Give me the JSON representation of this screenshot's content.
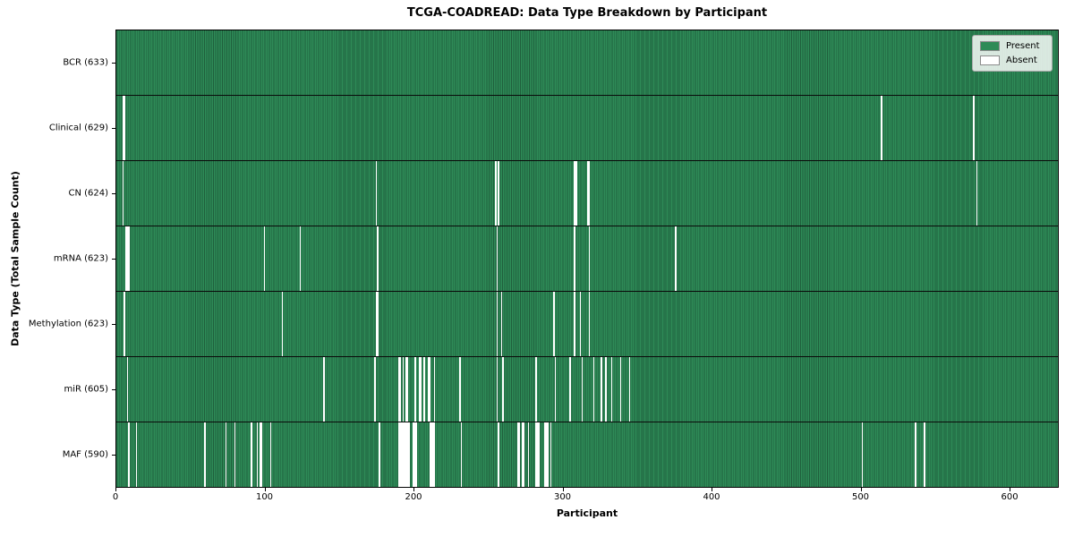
{
  "chart_data": {
    "type": "heatmap",
    "title": "TCGA-COADREAD: Data Type Breakdown by Participant",
    "xlabel": "Participant",
    "ylabel": "Data Type (Total Sample Count)",
    "legend": {
      "present_label": "Present",
      "absent_label": "Absent",
      "position": "upper right"
    },
    "colors": {
      "present": "#2e8b57",
      "present_edge": "#1f5f3c",
      "absent": "#ffffff"
    },
    "n_participants": 633,
    "x_ticks": [
      0,
      100,
      200,
      300,
      400,
      500,
      600
    ],
    "xlim": [
      0,
      633
    ],
    "grid": false,
    "rows": [
      {
        "label": "BCR (633)",
        "data_type": "BCR",
        "total": 633,
        "absent_participants": []
      },
      {
        "label": "Clinical (629)",
        "data_type": "Clinical",
        "total": 629,
        "absent_participants": [
          4,
          5,
          513,
          575
        ]
      },
      {
        "label": "CN (624)",
        "data_type": "CN",
        "total": 624,
        "absent_participants": [
          4,
          174,
          254,
          256,
          307,
          308,
          316,
          317,
          577
        ]
      },
      {
        "label": "mRNA (623)",
        "data_type": "mRNA",
        "total": 623,
        "absent_participants": [
          6,
          7,
          8,
          99,
          123,
          175,
          255,
          307,
          317,
          375
        ]
      },
      {
        "label": "Methylation (623)",
        "data_type": "Methylation",
        "total": 623,
        "absent_participants": [
          5,
          111,
          174,
          175,
          255,
          258,
          293,
          307,
          311,
          317
        ]
      },
      {
        "label": "miR (605)",
        "data_type": "miR",
        "total": 605,
        "absent_participants": [
          7,
          139,
          173,
          189,
          190,
          192,
          194,
          195,
          200,
          203,
          204,
          206,
          209,
          210,
          213,
          230,
          255,
          259,
          281,
          294,
          304,
          312,
          320,
          325,
          328,
          332,
          338,
          344
        ]
      },
      {
        "label": "MAF (590)",
        "data_type": "MAF",
        "total": 590,
        "absent_participants": [
          8,
          13,
          59,
          73,
          79,
          90,
          94,
          96,
          97,
          103,
          176,
          189,
          190,
          191,
          192,
          193,
          194,
          195,
          196,
          199,
          200,
          201,
          210,
          211,
          212,
          213,
          231,
          256,
          269,
          270,
          272,
          273,
          276,
          281,
          282,
          283,
          287,
          288,
          289,
          291,
          500,
          536,
          542
        ]
      }
    ]
  }
}
